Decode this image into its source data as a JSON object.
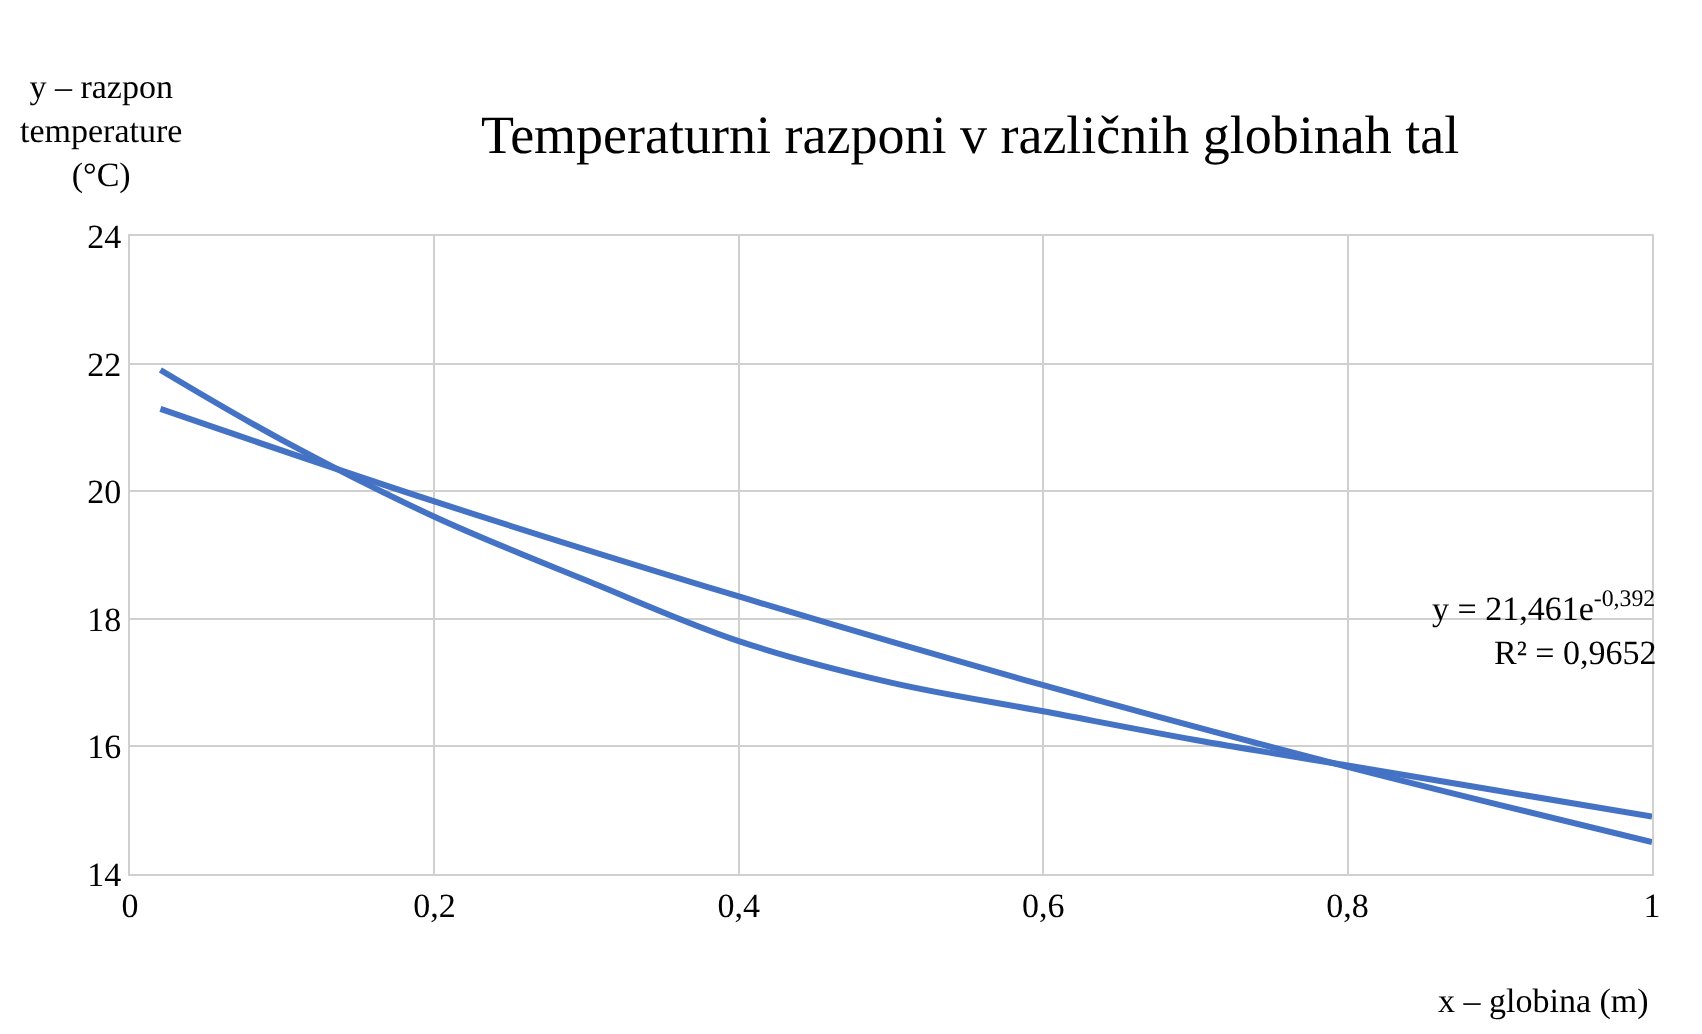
{
  "chart_data": {
    "type": "line",
    "title": "Temperaturni razponi v različnih globinah tal",
    "xlabel": "x – globina (m)",
    "ylabel": "y – razpon temperature (°C)",
    "series": [
      {
        "color": "#4472c4",
        "x": [
          0.02,
          0.1,
          0.2,
          0.3,
          0.4,
          0.5,
          0.6,
          0.7,
          0.8,
          0.9,
          1.0
        ],
        "values": [
          21.9,
          20.8,
          19.6,
          18.6,
          17.65,
          17.0,
          16.55,
          16.1,
          15.7,
          15.3,
          14.9
        ]
      },
      {
        "color": "#4472c4",
        "x": [
          0.02,
          0.2,
          0.4,
          0.6,
          0.8,
          1.0
        ],
        "values": [
          21.29,
          19.84,
          18.35,
          16.96,
          15.68,
          14.5
        ]
      }
    ],
    "annotations": [
      "y = 21,461e$^{-0,392}$",
      "R² = 0,9652"
    ],
    "xlim": [
      0,
      1
    ],
    "xticks": [
      {
        "value": 0,
        "label": "0"
      },
      {
        "value": 0.2,
        "label": "0,2"
      },
      {
        "value": 0.4,
        "label": "0,4"
      },
      {
        "value": 0.6,
        "label": "0,6"
      },
      {
        "value": 0.8,
        "label": "0,8"
      },
      {
        "value": 1,
        "label": "1"
      }
    ],
    "ylim": [
      14,
      24
    ],
    "yticks": [
      14,
      16,
      18,
      20,
      22,
      24
    ],
    "grid": true,
    "marker": "none",
    "line_style": "solid"
  }
}
